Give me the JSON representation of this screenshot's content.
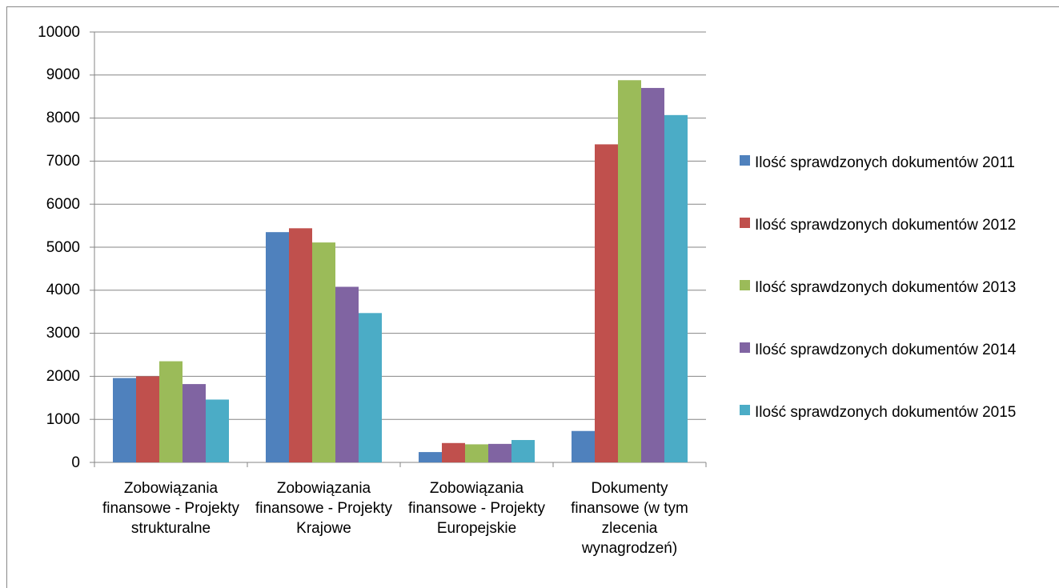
{
  "chart_data": {
    "type": "bar",
    "categories": [
      "Zobowiązania finansowe - Projekty strukturalne",
      "Zobowiązania finansowe - Projekty Krajowe",
      "Zobowiązania finansowe - Projekty Europejskie",
      "Dokumenty finansowe (w tym zlecenia wynagrodzeń)"
    ],
    "series": [
      {
        "name": "Ilość sprawdzonych dokumentów 2011",
        "color": "#4f81bd",
        "values": [
          1960,
          5350,
          240,
          730
        ]
      },
      {
        "name": "Ilość sprawdzonych dokumentów 2012",
        "color": "#c0504d",
        "values": [
          2000,
          5440,
          450,
          7390
        ]
      },
      {
        "name": "Ilość sprawdzonych dokumentów 2013",
        "color": "#9bbb59",
        "values": [
          2350,
          5110,
          420,
          8880
        ]
      },
      {
        "name": "Ilość sprawdzonych dokumentów 2014",
        "color": "#8064a2",
        "values": [
          1820,
          4080,
          430,
          8700
        ]
      },
      {
        "name": "Ilość sprawdzonych dokumentów 2015",
        "color": "#4bacc6",
        "values": [
          1460,
          3470,
          520,
          8070
        ]
      }
    ],
    "ylim": [
      0,
      10000
    ],
    "yticks": [
      0,
      1000,
      2000,
      3000,
      4000,
      5000,
      6000,
      7000,
      8000,
      9000,
      10000
    ],
    "grid": true,
    "legend": "right"
  }
}
